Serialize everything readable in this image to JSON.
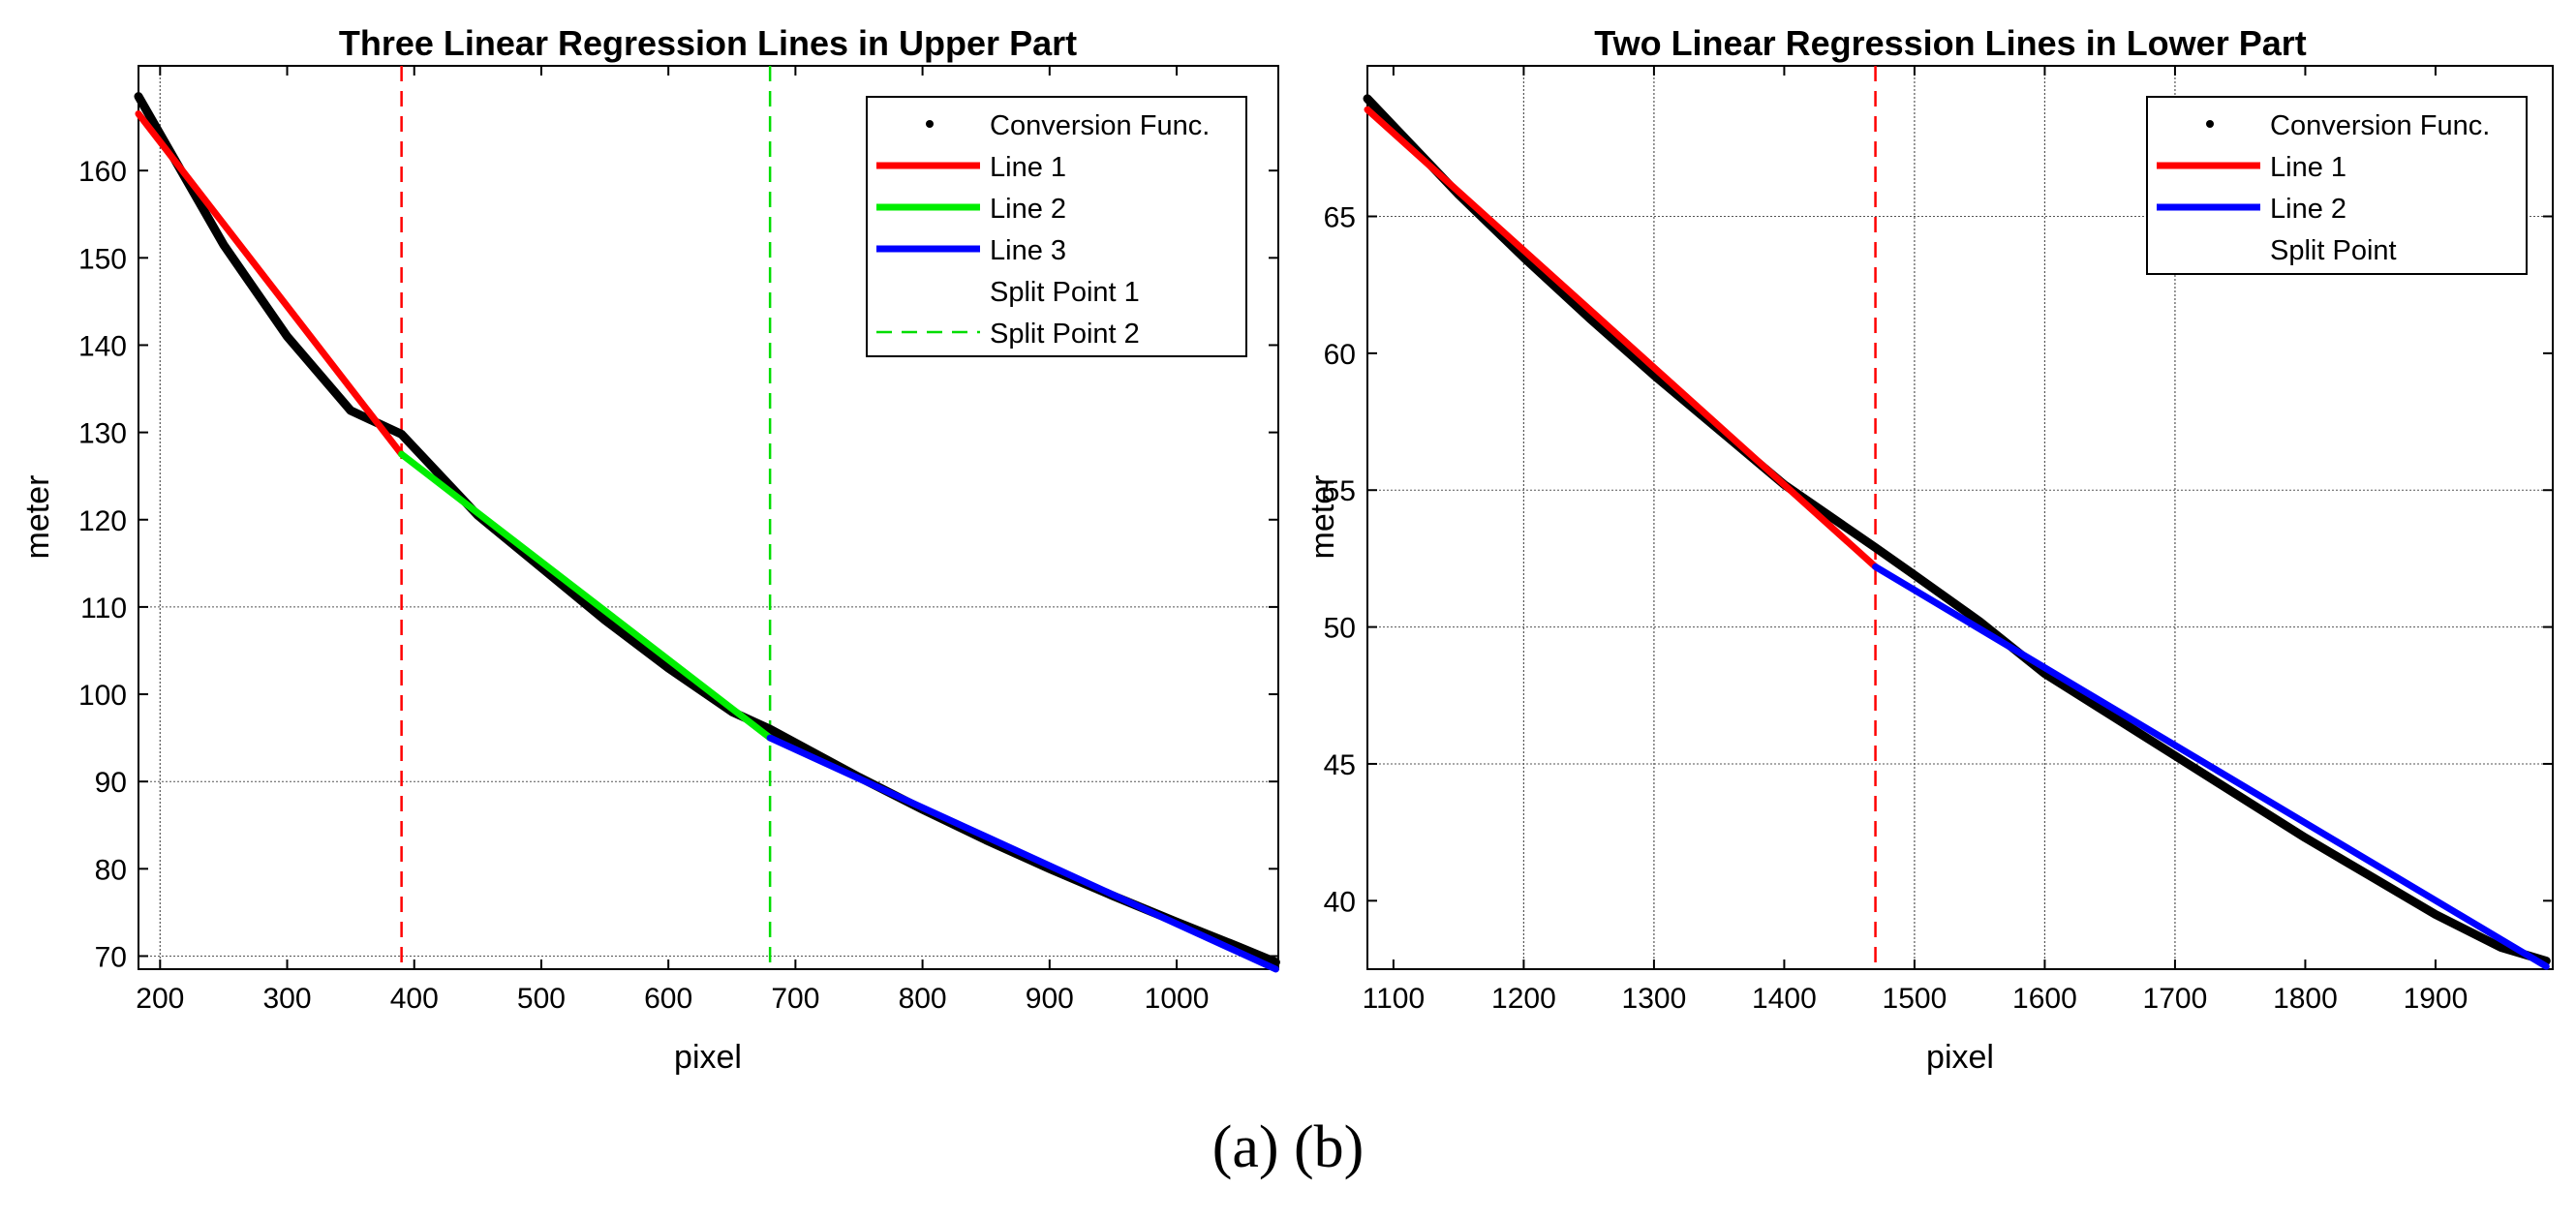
{
  "figure_caption": "(a) (b)",
  "chart_data": [
    {
      "type": "line",
      "title": "Three Linear Regression Lines in Upper Part",
      "xlabel": "pixel",
      "ylabel": "meter",
      "xlim": [
        183,
        1080
      ],
      "ylim": [
        68.5,
        172
      ],
      "xticks": [
        200,
        300,
        400,
        500,
        600,
        700,
        800,
        900,
        1000
      ],
      "yticks": [
        70,
        80,
        90,
        100,
        110,
        120,
        130,
        140,
        150,
        160
      ],
      "grid_y": [
        70,
        90,
        110
      ],
      "grid_x": [
        200
      ],
      "legend_position": "top-right",
      "legend": [
        "Conversion Func.",
        "Line 1",
        "Line 2",
        "Line 3",
        "Split Point 1",
        "Split Point 2"
      ],
      "series": [
        {
          "name": "Conversion Func.",
          "style": "dots",
          "color": "#000000",
          "x": [
            183,
            250,
            300,
            350,
            390,
            450,
            500,
            550,
            600,
            650,
            680,
            750,
            800,
            850,
            900,
            950,
            1000,
            1050,
            1078
          ],
          "y": [
            168.5,
            151.5,
            141.0,
            132.5,
            129.8,
            120.5,
            114.5,
            108.5,
            103.0,
            98.0,
            96.0,
            90.5,
            86.8,
            83.3,
            80.0,
            76.9,
            73.9,
            71.0,
            69.3
          ]
        },
        {
          "name": "Line 1",
          "style": "line",
          "color": "#ff0000",
          "x": [
            183,
            390
          ],
          "y": [
            166.5,
            127.5
          ]
        },
        {
          "name": "Line 2",
          "style": "line",
          "color": "#00ee00",
          "x": [
            390,
            680
          ],
          "y": [
            127.5,
            95.0
          ]
        },
        {
          "name": "Line 3",
          "style": "line",
          "color": "#0000ff",
          "x": [
            680,
            1078
          ],
          "y": [
            95.0,
            68.5
          ]
        }
      ],
      "split_points": [
        {
          "name": "Split Point 1",
          "x": 390,
          "color": "#ff0000",
          "in_legend_line": false
        },
        {
          "name": "Split Point 2",
          "x": 680,
          "color": "#00dd00",
          "in_legend_line": true
        }
      ]
    },
    {
      "type": "line",
      "title": "Two Linear Regression Lines in Lower Part",
      "xlabel": "pixel",
      "ylabel": "meter",
      "xlim": [
        1080,
        1990
      ],
      "ylim": [
        37.5,
        70.5
      ],
      "xticks": [
        1100,
        1200,
        1300,
        1400,
        1500,
        1600,
        1700,
        1800,
        1900
      ],
      "yticks": [
        40,
        45,
        50,
        55,
        60,
        65
      ],
      "grid_y": [
        65,
        55,
        45,
        50
      ],
      "grid_x": [
        1200,
        1300,
        1500,
        1600,
        1700
      ],
      "legend_position": "top-right",
      "legend": [
        "Conversion Func.",
        "Line 1",
        "Line 2",
        "Split Point"
      ],
      "series": [
        {
          "name": "Conversion Func.",
          "style": "dots",
          "color": "#000000",
          "x": [
            1080,
            1150,
            1200,
            1250,
            1300,
            1350,
            1400,
            1470,
            1500,
            1550,
            1600,
            1650,
            1700,
            1750,
            1800,
            1850,
            1900,
            1950,
            1985
          ],
          "y": [
            69.3,
            65.8,
            63.5,
            61.3,
            59.2,
            57.2,
            55.2,
            52.9,
            51.9,
            50.2,
            48.3,
            46.8,
            45.3,
            43.8,
            42.3,
            40.9,
            39.5,
            38.3,
            37.8
          ]
        },
        {
          "name": "Line 1",
          "style": "line",
          "color": "#ff0000",
          "x": [
            1080,
            1470
          ],
          "y": [
            68.9,
            52.2
          ]
        },
        {
          "name": "Line 2",
          "style": "line",
          "color": "#0000ff",
          "x": [
            1470,
            1985
          ],
          "y": [
            52.2,
            37.6
          ]
        }
      ],
      "split_points": [
        {
          "name": "Split Point",
          "x": 1470,
          "color": "#ff0000",
          "in_legend_line": false
        }
      ]
    }
  ]
}
